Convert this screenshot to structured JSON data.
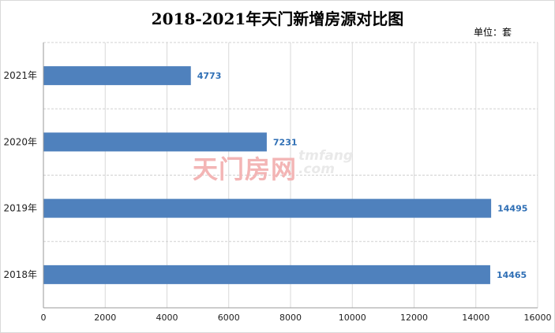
{
  "chart_data": {
    "type": "bar",
    "orientation": "horizontal",
    "title": "2018-2021年天门新增房源对比图",
    "unit": "单位：套",
    "categories": [
      "2021年",
      "2020年",
      "2019年",
      "2018年"
    ],
    "values": [
      4773,
      7231,
      14495,
      14465
    ],
    "xlim": [
      0,
      16000
    ],
    "x_ticks": [
      0,
      2000,
      4000,
      6000,
      8000,
      10000,
      12000,
      14000,
      16000
    ],
    "grid": true,
    "bar_color": "#4f81bd",
    "data_label_color": "#2f6fb5"
  },
  "watermark": {
    "cn": "天门房网",
    "en": "tmfang",
    "domain": ".com"
  }
}
